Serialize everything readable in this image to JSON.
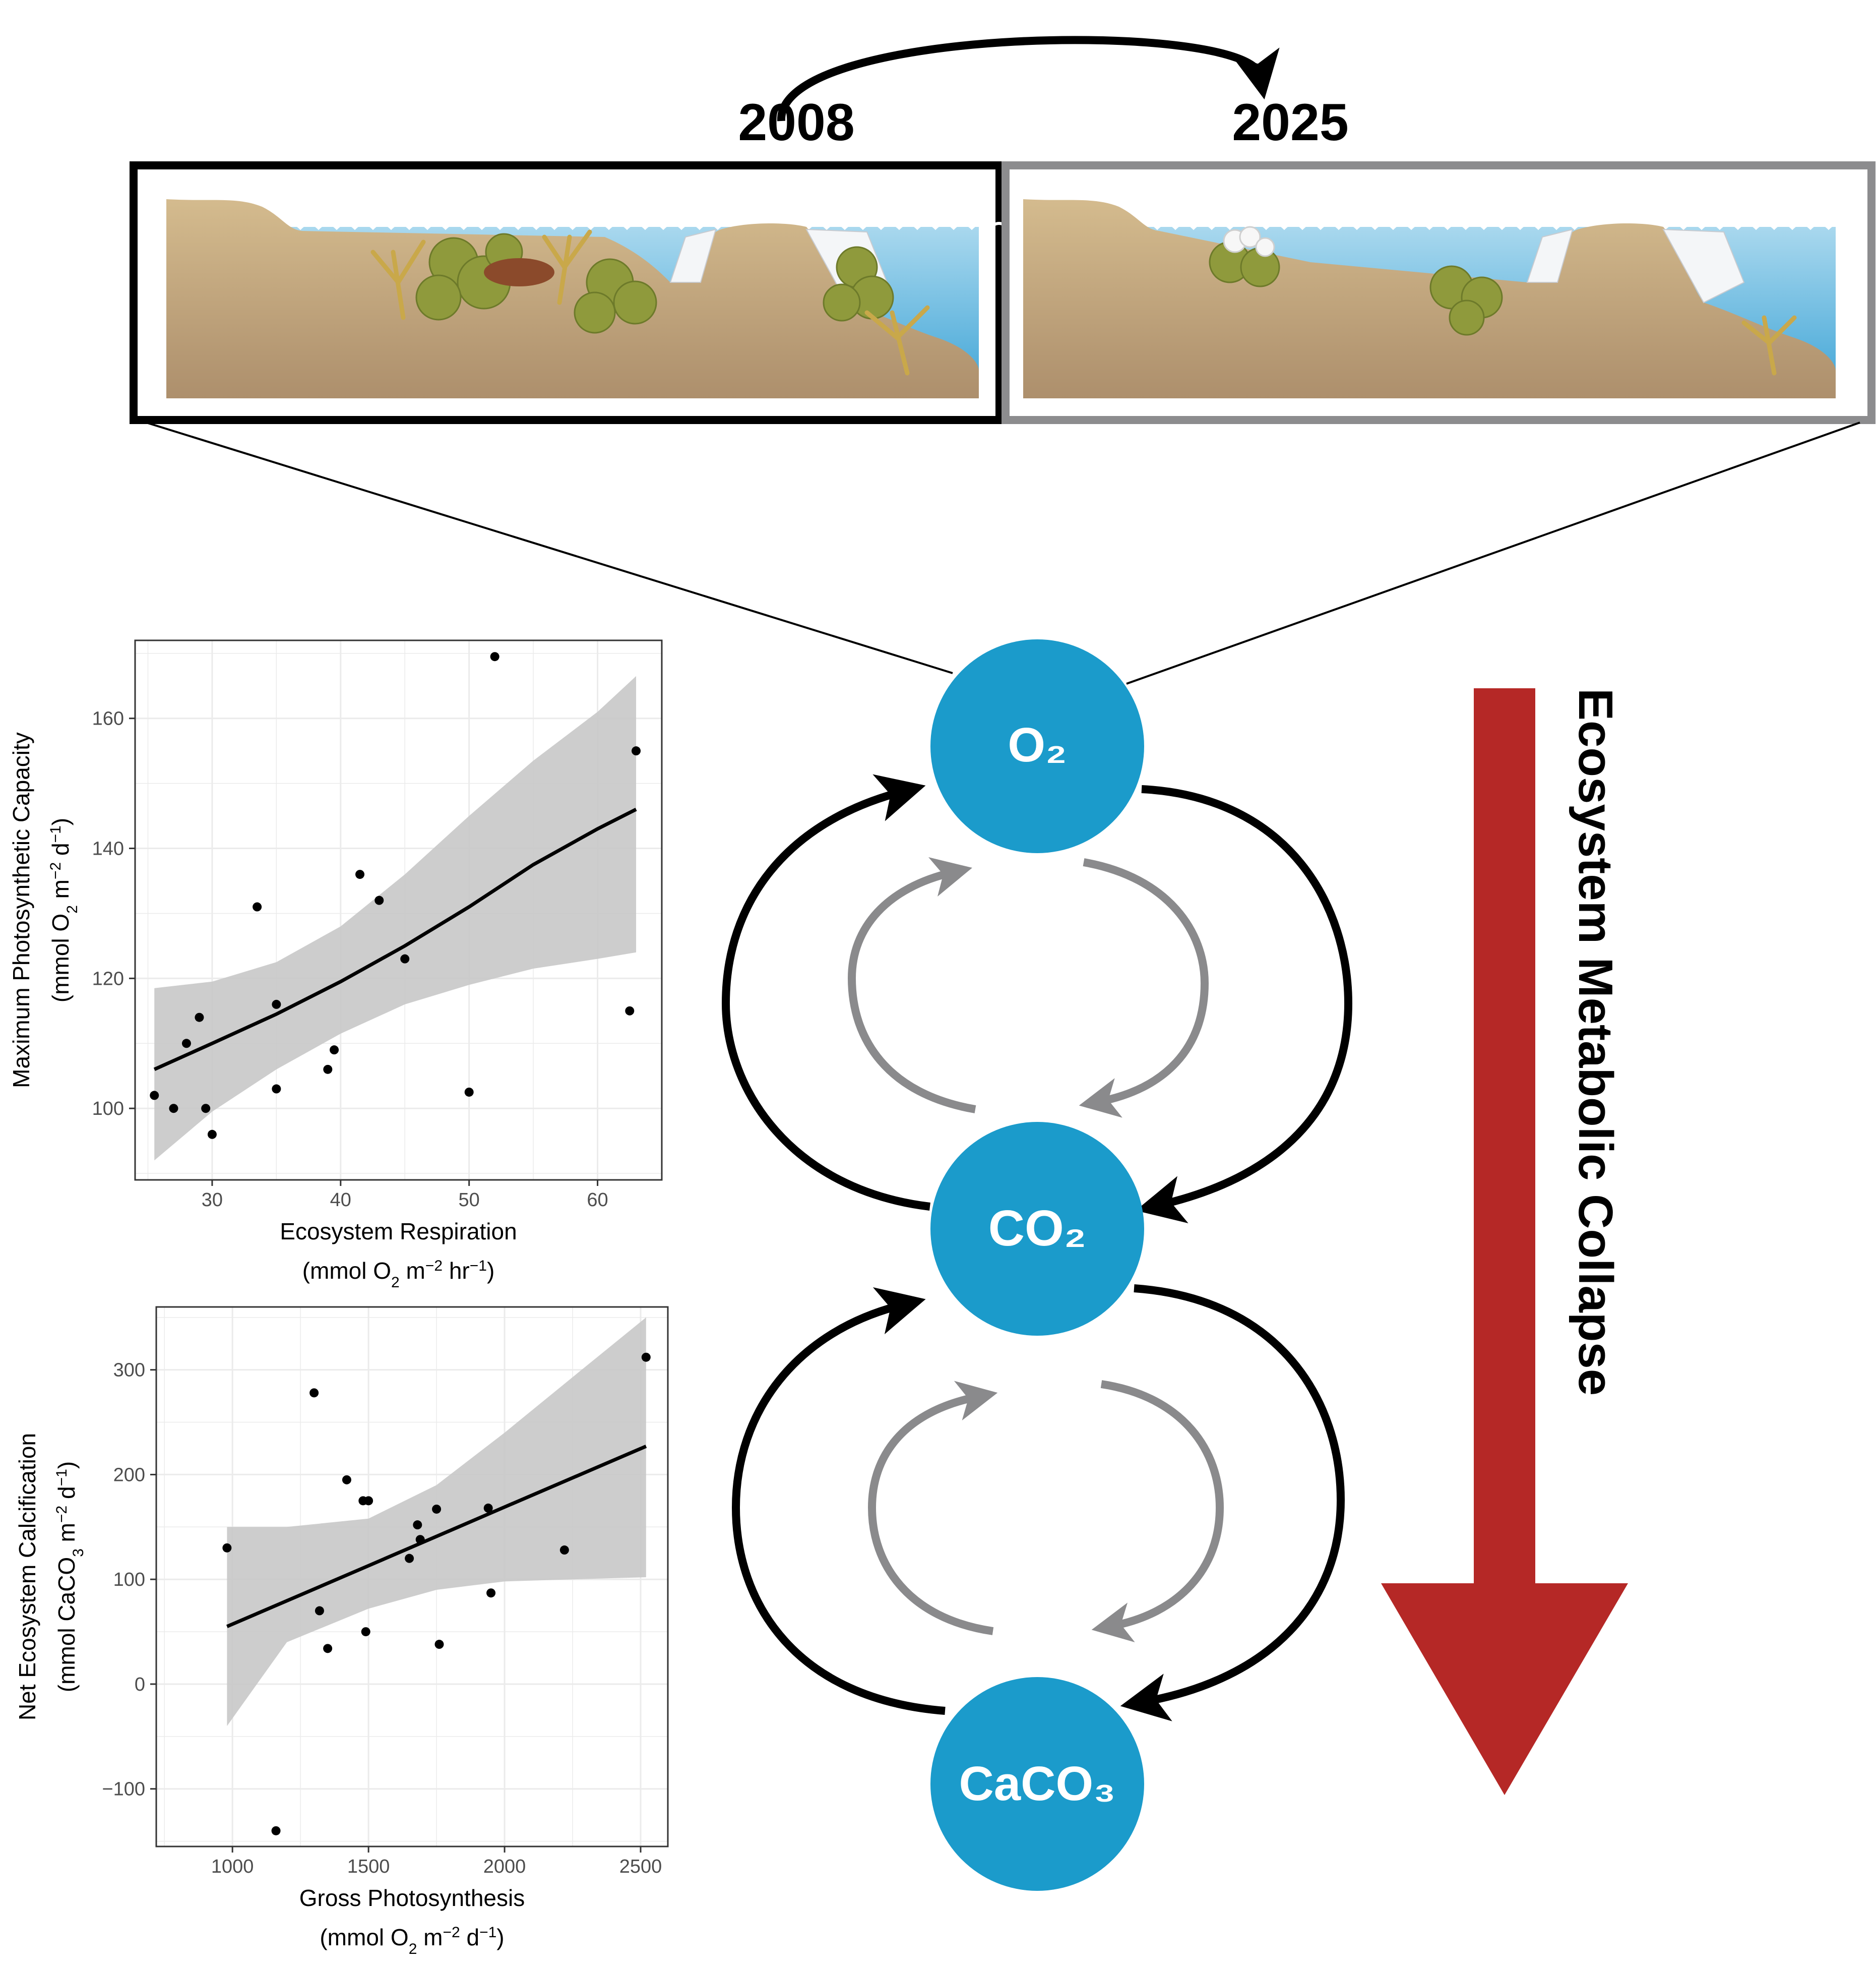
{
  "timeline": {
    "year_start": "2008",
    "year_end": "2025"
  },
  "nodes": {
    "o2": "O₂",
    "co2": "CO₂",
    "caco3": "CaCO₃"
  },
  "collapse_label": "Ecosystem Metabolic Collapse",
  "colors": {
    "node_fill": "#1b9bcb",
    "collapse_arrow": "#b52826",
    "inner_arrow": "#8a8a8c",
    "ribbon": "#c8c8c8",
    "sand": "#c2a57c",
    "water": "#8fcbe6"
  },
  "chart_data": [
    {
      "type": "scatter",
      "xlabel": "Ecosystem Respiration",
      "xunits": [
        "(mmol O",
        "2",
        " m",
        "−2",
        " hr",
        "−1",
        ")"
      ],
      "ylabel": "Maximum Photosynthetic Capacity",
      "yunits": [
        "(mmol O",
        "2",
        " m",
        "−2",
        " d",
        "−1",
        ")"
      ],
      "xlim": [
        24,
        65
      ],
      "ylim": [
        89,
        172
      ],
      "xticks": [
        30,
        40,
        50,
        60
      ],
      "yticks": [
        100,
        120,
        140,
        160
      ],
      "grid": true,
      "points": [
        [
          25.5,
          102
        ],
        [
          27,
          100
        ],
        [
          28,
          110
        ],
        [
          29,
          114
        ],
        [
          29.5,
          100
        ],
        [
          30,
          96
        ],
        [
          33.5,
          131
        ],
        [
          35,
          116
        ],
        [
          35,
          103
        ],
        [
          39,
          106
        ],
        [
          39.5,
          109
        ],
        [
          41.5,
          136
        ],
        [
          43,
          132
        ],
        [
          45,
          123
        ],
        [
          50,
          102.5
        ],
        [
          52,
          169.5
        ],
        [
          62.5,
          115
        ],
        [
          63,
          155
        ]
      ],
      "fit": [
        [
          25.5,
          106
        ],
        [
          30,
          110
        ],
        [
          35,
          114.5
        ],
        [
          40,
          119.5
        ],
        [
          45,
          125
        ],
        [
          50,
          131
        ],
        [
          55,
          137.5
        ],
        [
          60,
          143
        ],
        [
          63,
          146
        ]
      ],
      "band_upper": [
        [
          25.5,
          118.5
        ],
        [
          30,
          119.5
        ],
        [
          35,
          122.5
        ],
        [
          40,
          128
        ],
        [
          45,
          136
        ],
        [
          50,
          145
        ],
        [
          55,
          153.5
        ],
        [
          60,
          161
        ],
        [
          63,
          166.5
        ]
      ],
      "band_lower": [
        [
          25.5,
          92
        ],
        [
          30,
          99.5
        ],
        [
          35,
          106
        ],
        [
          40,
          111.5
        ],
        [
          45,
          116
        ],
        [
          50,
          119
        ],
        [
          55,
          121.5
        ],
        [
          60,
          123
        ],
        [
          63,
          124
        ]
      ]
    },
    {
      "type": "scatter",
      "xlabel": "Gross Photosynthesis",
      "xunits": [
        "(mmol O",
        "2",
        " m",
        "−2",
        " d",
        "−1",
        ")"
      ],
      "ylabel": "Net Ecosystem Calcification",
      "yunits": [
        "(mmol CaCO",
        "3",
        " m",
        "−2",
        " d",
        "−1",
        ")"
      ],
      "xlim": [
        720,
        2600
      ],
      "ylim": [
        -155,
        360
      ],
      "xticks": [
        1000,
        1500,
        2000,
        2500
      ],
      "yticks": [
        -100,
        0,
        100,
        200,
        300
      ],
      "grid": true,
      "points": [
        [
          980,
          130
        ],
        [
          1160,
          -140
        ],
        [
          1300,
          278
        ],
        [
          1320,
          70
        ],
        [
          1350,
          34
        ],
        [
          1420,
          195
        ],
        [
          1480,
          175
        ],
        [
          1490,
          50
        ],
        [
          1500,
          175
        ],
        [
          1650,
          120
        ],
        [
          1680,
          152
        ],
        [
          1690,
          138
        ],
        [
          1750,
          167
        ],
        [
          1760,
          38
        ],
        [
          1940,
          168
        ],
        [
          1950,
          87
        ],
        [
          2220,
          128
        ],
        [
          2520,
          312
        ]
      ],
      "fit": [
        [
          980,
          55
        ],
        [
          1500,
          113
        ],
        [
          2000,
          169
        ],
        [
          2520,
          227
        ]
      ],
      "band_upper": [
        [
          980,
          150
        ],
        [
          1200,
          150
        ],
        [
          1500,
          158
        ],
        [
          1750,
          190
        ],
        [
          2000,
          240
        ],
        [
          2250,
          293
        ],
        [
          2520,
          350
        ]
      ],
      "band_lower": [
        [
          980,
          -40
        ],
        [
          1200,
          40
        ],
        [
          1500,
          72
        ],
        [
          1750,
          90
        ],
        [
          2000,
          98
        ],
        [
          2250,
          100
        ],
        [
          2520,
          102
        ]
      ]
    }
  ]
}
